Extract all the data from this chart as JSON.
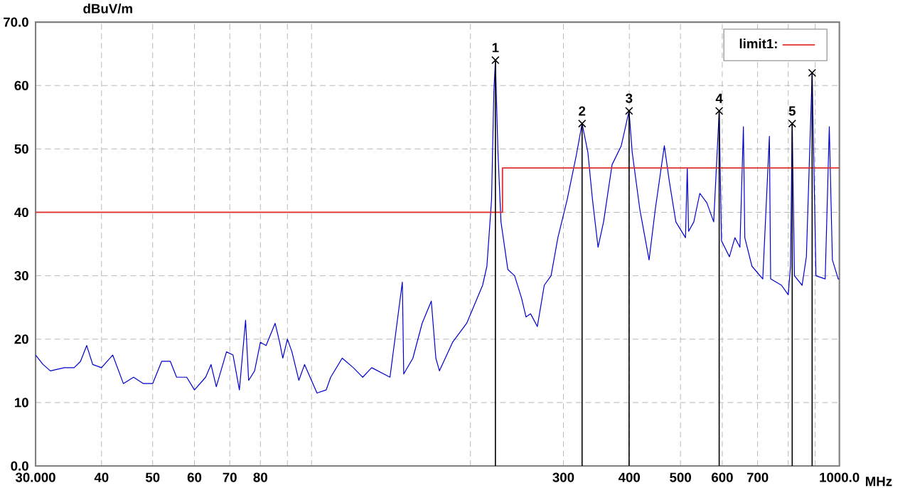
{
  "chart_data": {
    "type": "line",
    "ylabel": "dBuV/m",
    "xlabel": "MHz",
    "log": "x",
    "grid": true,
    "legend": "top right",
    "xlim": [
      30,
      1000
    ],
    "ylim": [
      0,
      70
    ],
    "xticks": [
      {
        "value": 30,
        "label": "30.000"
      },
      40,
      50,
      60,
      70,
      80,
      {
        "value": 90,
        "label": null
      },
      {
        "value": 100,
        "label": null
      },
      {
        "value": 200,
        "label": null
      },
      300,
      400,
      500,
      600,
      700,
      {
        "value": 800,
        "label": null
      },
      {
        "value": 900,
        "label": null
      },
      {
        "value": 1000,
        "label": "1000.0"
      }
    ],
    "yticks": [
      {
        "value": 0,
        "label": "0.0"
      },
      10,
      20,
      30,
      40,
      50,
      60,
      {
        "value": 70,
        "label": "70.0"
      }
    ],
    "series": [
      {
        "color": "#0000cc",
        "x": [
          30,
          31,
          32,
          34,
          35.5,
          36.5,
          37.5,
          38.5,
          40,
          42,
          44,
          46,
          48,
          50,
          52,
          54,
          55.5,
          58,
          60,
          63,
          64.5,
          66,
          69,
          71,
          73,
          75,
          76,
          78,
          80,
          82,
          85.3,
          87,
          88.2,
          90,
          91.8,
          94.6,
          97,
          102.4,
          106.6,
          108.7,
          114.3,
          120,
          125,
          130,
          140.8,
          148.6,
          149.5,
          155.6,
          162,
          168.6,
          172,
          174.7,
          185,
          196.8,
          210.9,
          214.9,
          219.3,
          221.5,
          223,
          225.5,
          228.5,
          235.4,
          242.5,
          249.9,
          254.9,
          260,
          267.8,
          276,
          284.3,
          292.9,
          305,
          317.4,
          325.5,
          333.8,
          340.6,
          349,
          357.5,
          371,
          386.2,
          399.6,
          405,
          418.7,
          436,
          448,
          466,
          476,
          490,
          511,
          515,
          518,
          530,
          544,
          561,
          578,
          592,
          598,
          619,
          634,
          648,
          658,
          662,
          683,
          716,
          737,
          741,
          777,
          800,
          808,
          814,
          822,
          850,
          866,
          888,
          903,
          940,
          957,
          970,
          995,
          1000
        ],
        "values": [
          17.5,
          16,
          15,
          15.5,
          15.5,
          16.5,
          19,
          16,
          15.5,
          17.5,
          13,
          14,
          13,
          13,
          16.5,
          16.5,
          14,
          14,
          12,
          14,
          16,
          12.5,
          18,
          17.5,
          12,
          23,
          13.5,
          15,
          19.5,
          19,
          22.5,
          19.5,
          17,
          20,
          18,
          13.5,
          16,
          11.5,
          12,
          14,
          17,
          15.5,
          14,
          15.5,
          14,
          29,
          14.5,
          17,
          22.5,
          26,
          17,
          15,
          19.5,
          22.5,
          28.5,
          31.5,
          42,
          59,
          64,
          49.5,
          38.5,
          31,
          30,
          26.5,
          23.5,
          24,
          22,
          28.5,
          30,
          36,
          42,
          49,
          54,
          49.5,
          42,
          34.5,
          38.5,
          47.5,
          50.5,
          56,
          49.5,
          40.5,
          32.5,
          40.5,
          50.5,
          45,
          38.5,
          36,
          47,
          37,
          38.5,
          43,
          41.5,
          38.5,
          56,
          35.5,
          33,
          36,
          34.5,
          53.5,
          36,
          31.5,
          29.5,
          52,
          29.5,
          28.5,
          27,
          31.5,
          54,
          30,
          28.5,
          33,
          62,
          30,
          29.5,
          53.5,
          32.5,
          29.5,
          29.5
        ]
      },
      {
        "type": "step",
        "name": "limit1:",
        "color": "#e03030",
        "x": [
          30,
          230,
          1000
        ],
        "values": [
          40,
          47,
          47
        ]
      },
      {
        "type": "lollipop",
        "color": "#000000",
        "marker": "cross",
        "x": [
          223,
          325.5,
          399.6,
          592,
          814,
          888
        ],
        "values": [
          64,
          54,
          56,
          56,
          54,
          62
        ]
      }
    ],
    "annotations": [
      {
        "text": "1",
        "x": 223,
        "y": 64
      },
      {
        "text": "2",
        "x": 325.5,
        "y": 54
      },
      {
        "text": "3",
        "x": 399.6,
        "y": 56
      },
      {
        "text": "4",
        "x": 592,
        "y": 56
      },
      {
        "text": "5",
        "x": 814,
        "y": 54
      }
    ]
  }
}
